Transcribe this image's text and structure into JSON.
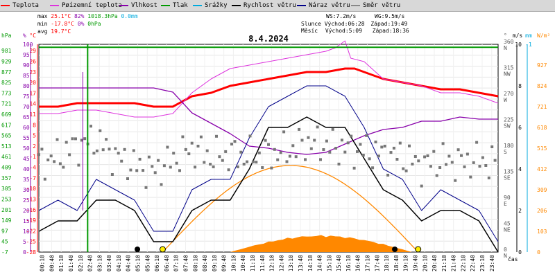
{
  "legend": [
    {
      "label": "Teplota",
      "color": "#ff0000"
    },
    {
      "label": "Pøízemní teplota",
      "color": "#dd33dd"
    },
    {
      "label": "Vlhkost",
      "color": "#8800aa"
    },
    {
      "label": "Tlak",
      "color": "#009900"
    },
    {
      "label": "Srážky",
      "color": "#00aadd"
    },
    {
      "label": "Rychlost větru",
      "color": "#000000"
    },
    {
      "label": "Náraz větru",
      "color": "#000088"
    },
    {
      "label": "Směr větru",
      "color": "#888888"
    }
  ],
  "stats": {
    "max_label": "max",
    "max_temp": "25.1°C",
    "max_hum": "82%",
    "max_press": "1018.3hPa",
    "max_rain": "0.0mm",
    "min_label": "min",
    "min_temp": "-17.8°C",
    "min_hum": "0%",
    "min_press": "0hPa",
    "avg_label": "avg",
    "avg_temp": "19.7°C"
  },
  "astro": {
    "ws": "WS:7.2m/s",
    "wg": "WG:9.5m/s",
    "sun_label": "Slunce",
    "sun_rise": "Východ:06:28",
    "sun_set": "Západ:19:49",
    "moon_label": "Měsíc",
    "moon_rise": "Východ:5:09",
    "moon_set": "Západ:18:36"
  },
  "date": "8.4.2024",
  "axis_titles": {
    "hpa": "hPa",
    "pct": "%",
    "degc": "°C",
    "deg": "°",
    "ms": "m/s",
    "mm": "mm",
    "wm2": "W/m²",
    "time": "čas"
  },
  "colors": {
    "temp": "#ff0000",
    "ground": "#dd33dd",
    "hum": "#8800aa",
    "press": "#009900",
    "rain": "#00aadd",
    "wind": "#000000",
    "gust": "#000088",
    "dir": "#777777",
    "solar": "#ff8800",
    "sun_curve": "#ff8800"
  },
  "chart_data": {
    "type": "line",
    "date": "8.4.2024",
    "x_ticks": [
      "00:10",
      "00:40",
      "01:10",
      "01:40",
      "02:10",
      "02:40",
      "03:10",
      "03:40",
      "04:10",
      "04:40",
      "05:10",
      "05:40",
      "06:10",
      "06:40",
      "07:10",
      "07:40",
      "08:10",
      "08:40",
      "09:10",
      "09:40",
      "10:10",
      "10:40",
      "11:10",
      "11:40",
      "12:10",
      "12:40",
      "13:10",
      "13:40",
      "14:10",
      "14:40",
      "15:10",
      "15:40",
      "16:10",
      "16:40",
      "17:10",
      "17:40",
      "18:10",
      "18:40",
      "19:10",
      "19:40",
      "20:10",
      "20:40",
      "21:10",
      "21:40",
      "22:10",
      "22:40",
      "23:10",
      "23:40"
    ],
    "axes": {
      "hpa": {
        "ticks": [
          "-7",
          "45",
          "97",
          "149",
          "201",
          "253",
          "305",
          "357",
          "409",
          "461",
          "513",
          "565",
          "617",
          "669",
          "721",
          "773",
          "825",
          "877",
          "929",
          "981"
        ],
        "ylim": [
          -7,
          1033
        ]
      },
      "humidity": {
        "ticks": [
          "0",
          "5",
          "10",
          "15",
          "20",
          "25",
          "30",
          "35",
          "40",
          "45",
          "50",
          "55",
          "60",
          "65",
          "70",
          "75",
          "80",
          "85",
          "90",
          "95",
          "100"
        ],
        "ylim": [
          0,
          100
        ]
      },
      "temperature": {
        "ticks": [
          "-28",
          "-25",
          "-22",
          "-19",
          "-16",
          "-13",
          "-10",
          "-7",
          "-4",
          "-1",
          "2",
          "5",
          "8",
          "11",
          "14",
          "17",
          "20",
          "23",
          "26",
          "29"
        ],
        "ylim": [
          -28,
          32
        ]
      },
      "direction": {
        "ticks": [
          "0 N",
          "45 NE",
          "90 E",
          "135 SE",
          "180 S",
          "225 SW",
          "270 W",
          "315 NW",
          "360 N"
        ],
        "ylim": [
          0,
          360
        ]
      },
      "wind_ms": {
        "ticks": [
          "0",
          "2",
          "4",
          "6",
          "8",
          "10"
        ],
        "ylim": [
          0,
          10
        ]
      },
      "rain_mm": {
        "ticks": [
          "-1"
        ]
      },
      "solar_wm2": {
        "ticks": [
          "0",
          "103",
          "206",
          "309",
          "412",
          "515",
          "618",
          "721",
          "824",
          "927"
        ],
        "ylim": [
          0,
          1030
        ]
      }
    },
    "series": [
      {
        "name": "Teplota",
        "hours": [
          0,
          1,
          2,
          3,
          4,
          5,
          6,
          7,
          8,
          9,
          10,
          11,
          12,
          13,
          14,
          15,
          16,
          16.5,
          17,
          18,
          19,
          20,
          21,
          22,
          23,
          24
        ],
        "values": [
          14,
          14,
          15,
          15,
          15,
          15,
          14,
          14,
          17,
          18,
          20,
          21,
          22,
          23,
          24,
          24,
          25,
          25,
          24,
          22,
          21,
          20,
          19,
          19,
          18,
          17
        ]
      },
      {
        "name": "Pøízemní teplota",
        "hours": [
          0,
          1,
          2,
          3,
          4,
          5,
          6,
          7,
          8,
          9,
          10,
          11,
          12,
          13,
          14,
          15,
          15.5,
          16,
          16.3,
          17,
          18,
          19,
          20,
          21,
          22,
          23,
          24
        ],
        "values": [
          12,
          12,
          13,
          13,
          12,
          11,
          11,
          12,
          18,
          22,
          25,
          26,
          27,
          28,
          29,
          30,
          31,
          33,
          28,
          27,
          22,
          21,
          20,
          18,
          18,
          17,
          15
        ]
      },
      {
        "name": "Vlhkost",
        "hours": [
          0,
          1,
          2,
          3,
          4,
          5,
          6,
          7,
          8,
          9,
          10,
          11,
          12,
          13,
          14,
          15,
          16,
          17,
          18,
          19,
          20,
          21,
          22,
          23,
          24
        ],
        "values": [
          79,
          79,
          79,
          79,
          79,
          79,
          79,
          77,
          67,
          62,
          57,
          51,
          50,
          48,
          47,
          48,
          52,
          56,
          59,
          60,
          63,
          63,
          65,
          64,
          64
        ]
      },
      {
        "name": "Tlak",
        "hours": [
          0,
          24
        ],
        "values": [
          1018.3,
          1018.3
        ]
      },
      {
        "name": "Rychlost větru",
        "hours": [
          0,
          1,
          2,
          3,
          4,
          5,
          6,
          7,
          8,
          9,
          10,
          11,
          12,
          13,
          14,
          15,
          16,
          17,
          18,
          19,
          20,
          21,
          22,
          23,
          24
        ],
        "values": [
          1,
          1.5,
          1.5,
          2.5,
          2.5,
          2,
          0.5,
          0.5,
          2,
          2.5,
          2.5,
          4,
          6,
          6,
          6.5,
          6,
          6,
          4.5,
          3,
          2.5,
          1.5,
          2,
          2,
          1.5,
          0
        ]
      },
      {
        "name": "Náraz větru",
        "hours": [
          0,
          1,
          2,
          3,
          4,
          5,
          6,
          7,
          8,
          9,
          10,
          11,
          12,
          13,
          14,
          15,
          16,
          17,
          18,
          19,
          20,
          21,
          22,
          23,
          24
        ],
        "values": [
          2,
          2.5,
          2,
          3.5,
          3,
          2.5,
          1,
          1,
          3,
          3.5,
          3.5,
          5.5,
          7,
          7.5,
          8,
          8,
          7.5,
          6,
          4,
          3.5,
          2,
          3,
          2.5,
          2,
          0.5
        ]
      },
      {
        "name": "Směr větru",
        "hours": [
          0,
          1,
          2,
          3,
          4,
          5,
          6,
          7,
          8,
          9,
          10,
          11,
          12,
          13,
          14,
          15,
          16,
          17,
          18,
          19,
          20,
          21,
          22,
          23,
          24
        ],
        "values": [
          155,
          165,
          185,
          195,
          165,
          150,
          140,
          160,
          180,
          165,
          170,
          165,
          170,
          175,
          190,
          185,
          180,
          175,
          170,
          165,
          150,
          160,
          155,
          160,
          150
        ]
      }
    ]
  }
}
